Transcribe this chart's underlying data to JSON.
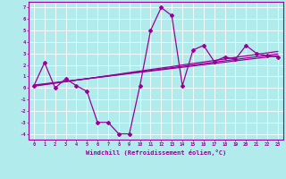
{
  "x": [
    0,
    1,
    2,
    3,
    4,
    5,
    6,
    7,
    8,
    9,
    10,
    11,
    12,
    13,
    14,
    15,
    16,
    17,
    18,
    19,
    20,
    21,
    22,
    23
  ],
  "y_main": [
    0.2,
    2.2,
    0.0,
    0.8,
    0.2,
    -0.3,
    -3.0,
    -3.0,
    -4.0,
    -4.0,
    0.2,
    5.0,
    7.0,
    6.3,
    0.2,
    3.3,
    3.7,
    2.3,
    2.7,
    2.5,
    3.7,
    3.0,
    2.8,
    2.7
  ],
  "y_trend1": [
    0.15,
    0.28,
    0.41,
    0.55,
    0.68,
    0.81,
    0.94,
    1.07,
    1.2,
    1.34,
    1.47,
    1.6,
    1.73,
    1.86,
    2.0,
    2.13,
    2.26,
    2.39,
    2.52,
    2.66,
    2.79,
    2.92,
    3.05,
    3.18
  ],
  "y_trend2": [
    0.25,
    0.36,
    0.47,
    0.58,
    0.69,
    0.8,
    0.91,
    1.02,
    1.13,
    1.25,
    1.36,
    1.47,
    1.58,
    1.69,
    1.8,
    1.91,
    2.02,
    2.13,
    2.24,
    2.36,
    2.47,
    2.58,
    2.69,
    2.8
  ],
  "y_trend3": [
    0.2,
    0.32,
    0.44,
    0.56,
    0.68,
    0.8,
    0.92,
    1.04,
    1.16,
    1.28,
    1.4,
    1.52,
    1.64,
    1.76,
    1.88,
    2.0,
    2.12,
    2.24,
    2.36,
    2.48,
    2.6,
    2.72,
    2.84,
    2.96
  ],
  "color": "#990099",
  "bg_color": "#b2ebeb",
  "grid_color": "#ffffff",
  "xlabel": "Windchill (Refroidissement éolien,°C)",
  "ylim": [
    -4.5,
    7.5
  ],
  "xlim": [
    -0.5,
    23.5
  ],
  "yticks": [
    -4,
    -3,
    -2,
    -1,
    0,
    1,
    2,
    3,
    4,
    5,
    6,
    7
  ],
  "xticks": [
    0,
    1,
    2,
    3,
    4,
    5,
    6,
    7,
    8,
    9,
    10,
    11,
    12,
    13,
    14,
    15,
    16,
    17,
    18,
    19,
    20,
    21,
    22,
    23
  ]
}
